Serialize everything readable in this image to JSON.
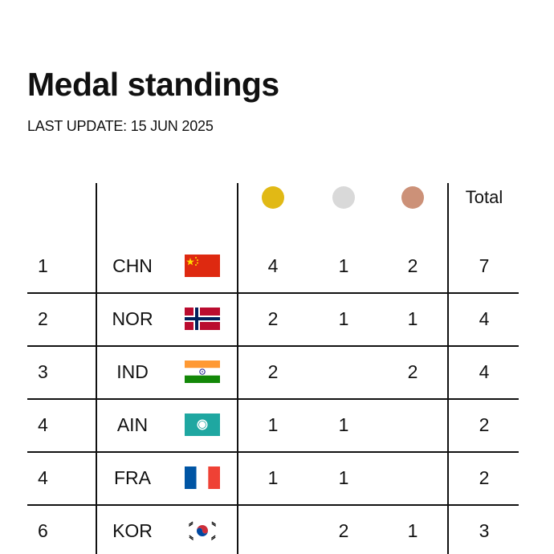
{
  "title": "Medal standings",
  "subtitle": "LAST UPDATE: 15 JUN 2025",
  "colors": {
    "gold": "#E1B915",
    "silver": "#D9D9D9",
    "bronze": "#CC9178"
  },
  "header": {
    "medals": [
      "gold-medal-icon",
      "silver-medal-icon",
      "bronze-medal-icon"
    ],
    "total": "Total"
  },
  "rows": [
    {
      "rank": "1",
      "code": "CHN",
      "flag": "china-flag-icon",
      "gold": "4",
      "silver": "1",
      "bronze": "2",
      "total": "7"
    },
    {
      "rank": "2",
      "code": "NOR",
      "flag": "norway-flag-icon",
      "gold": "2",
      "silver": "1",
      "bronze": "1",
      "total": "4"
    },
    {
      "rank": "3",
      "code": "IND",
      "flag": "india-flag-icon",
      "gold": "2",
      "silver": "",
      "bronze": "2",
      "total": "4"
    },
    {
      "rank": "4",
      "code": "AIN",
      "flag": "ain-flag-icon",
      "gold": "1",
      "silver": "1",
      "bronze": "",
      "total": "2"
    },
    {
      "rank": "4",
      "code": "FRA",
      "flag": "france-flag-icon",
      "gold": "1",
      "silver": "1",
      "bronze": "",
      "total": "2"
    },
    {
      "rank": "6",
      "code": "KOR",
      "flag": "korea-flag-icon",
      "gold": "",
      "silver": "2",
      "bronze": "1",
      "total": "3"
    }
  ]
}
